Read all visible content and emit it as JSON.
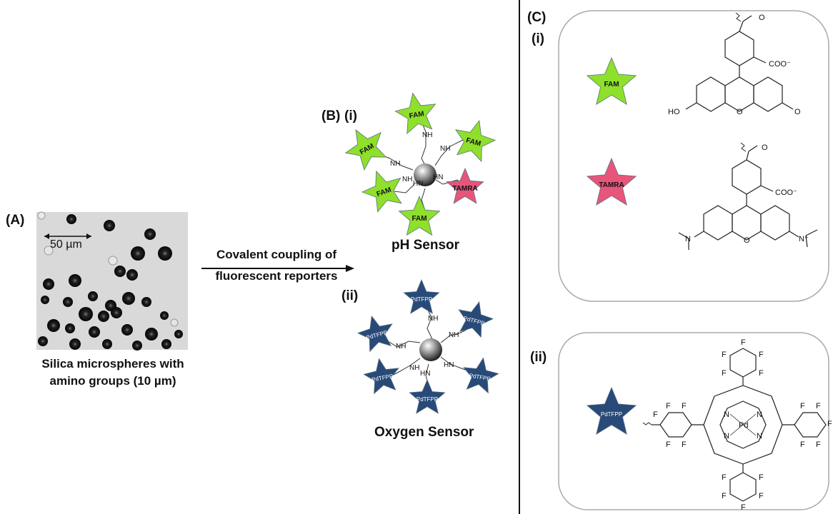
{
  "panels": {
    "a_label": "(A)",
    "b_label": "(B)",
    "b_i_label": "(i)",
    "b_ii_label": "(ii)",
    "c_label": "(C)",
    "c_i_label": "(i)",
    "c_ii_label": "(ii)"
  },
  "micrograph": {
    "scale_text": "50 µm",
    "caption_line1": "Silica microspheres with",
    "caption_line2": "amino groups (10 µm)"
  },
  "arrow": {
    "line1": "Covalent coupling of",
    "line2": "fluorescent reporters"
  },
  "sensors": {
    "ph_title": "pH Sensor",
    "oxygen_title": "Oxygen Sensor",
    "linker": "NH",
    "linker_alt": "HN"
  },
  "dyes": {
    "fam": "FAM",
    "tamra": "TAMRA",
    "pdtfpp": "PdTFPP"
  },
  "chem_labels": {
    "coo": "COO⁻",
    "ho": "HO",
    "o": "O",
    "n_plus": "N⁺",
    "n": "N",
    "f": "F",
    "pd": "Pd"
  },
  "colors": {
    "fam_green": "#8ee02b",
    "tamra_pink": "#e8557a",
    "pdtfpp_blue": "#274a78",
    "divider": "#111111",
    "box_border": "#aaaaaa"
  }
}
